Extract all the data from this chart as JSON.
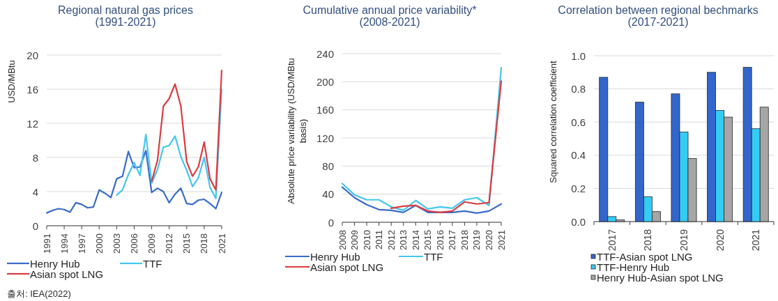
{
  "chart_data": [
    {
      "type": "line",
      "title": "Regional natural gas prices",
      "subtitle": "(1991-2021)",
      "ylabel": "USD/MBtu",
      "x": [
        1991,
        1992,
        1993,
        1994,
        1995,
        1996,
        1997,
        1998,
        1999,
        2000,
        2001,
        2002,
        2003,
        2004,
        2005,
        2006,
        2007,
        2008,
        2009,
        2010,
        2011,
        2012,
        2013,
        2014,
        2015,
        2016,
        2017,
        2018,
        2019,
        2020,
        2021
      ],
      "xlim": [
        1991,
        2021
      ],
      "xticks": [
        1991,
        1994,
        1997,
        2000,
        2003,
        2006,
        2009,
        2012,
        2015,
        2018,
        2021
      ],
      "ylim": [
        0,
        20
      ],
      "yticks": [
        0,
        4,
        8,
        12,
        16,
        20
      ],
      "grid": "y",
      "legend": "bottom",
      "series": [
        {
          "name": "Henry Hub",
          "color": "#3a6bc9",
          "values": [
            1.5,
            1.8,
            2.0,
            1.9,
            1.6,
            2.7,
            2.5,
            2.1,
            2.2,
            4.2,
            3.8,
            3.3,
            5.5,
            5.8,
            8.7,
            6.8,
            6.9,
            8.8,
            3.9,
            4.4,
            4.0,
            2.7,
            3.7,
            4.4,
            2.6,
            2.5,
            3.0,
            3.1,
            2.6,
            2.0,
            3.9
          ]
        },
        {
          "name": "TTF",
          "color": "#45c6ee",
          "values": [
            null,
            null,
            null,
            null,
            null,
            null,
            null,
            null,
            null,
            null,
            null,
            null,
            3.6,
            4.2,
            6.0,
            7.4,
            5.9,
            10.7,
            5.0,
            6.6,
            9.2,
            9.4,
            10.5,
            8.1,
            6.5,
            4.6,
            5.6,
            8.0,
            4.5,
            3.2,
            16.0
          ]
        },
        {
          "name": "Asian spot LNG",
          "color": "#dd3b3f",
          "values": [
            null,
            null,
            null,
            null,
            null,
            null,
            null,
            null,
            null,
            null,
            null,
            null,
            null,
            null,
            null,
            null,
            null,
            null,
            5.2,
            7.7,
            14.0,
            14.9,
            16.6,
            14.0,
            7.5,
            5.8,
            6.9,
            9.8,
            5.5,
            4.2,
            18.2
          ]
        }
      ],
      "annotations": [
        "출처: IEA(2022)"
      ]
    },
    {
      "type": "line",
      "title": "Cumulative annual price variability*",
      "subtitle": "(2008-2021)",
      "ylabel": "Absolute price variability (USD/MBtu basis)",
      "categories": [
        "2008",
        "2009",
        "2010",
        "2011",
        "2012",
        "2013",
        "2014",
        "2015",
        "2016",
        "2017",
        "2018",
        "2019",
        "2020",
        "2021"
      ],
      "ylim": [
        0,
        240
      ],
      "yticks": [
        0,
        40,
        80,
        120,
        160,
        200,
        240
      ],
      "grid": "y",
      "legend": "bottom",
      "series": [
        {
          "name": "Henry Hub",
          "color": "#3a6bc9",
          "values": [
            50,
            35,
            25,
            18,
            17,
            14,
            24,
            14,
            14,
            14,
            16,
            13,
            16,
            26
          ]
        },
        {
          "name": "TTF",
          "color": "#45c6ee",
          "values": [
            55,
            39,
            32,
            32,
            22,
            17,
            31,
            19,
            22,
            20,
            32,
            35,
            24,
            220
          ]
        },
        {
          "name": "Asian spot LNG",
          "color": "#dd3b3f",
          "values": [
            null,
            null,
            null,
            null,
            20,
            23,
            24,
            16,
            14,
            16,
            29,
            26,
            28,
            201
          ]
        }
      ]
    },
    {
      "type": "bar",
      "title": "Correlation between regional bechmarks",
      "subtitle": "(2017-2021)",
      "ylabel": "Squared correlation coefficient",
      "categories": [
        "2017",
        "2018",
        "2019",
        "2020",
        "2021"
      ],
      "ylim": [
        0,
        1
      ],
      "yticks": [
        {
          "value": 0,
          "label": "0.0"
        },
        0.2,
        0.4,
        0.6,
        0.8,
        {
          "value": 1,
          "label": "1.0"
        }
      ],
      "grid": "y",
      "legend": "bottom",
      "series": [
        {
          "name": "TTF-Asian spot LNG",
          "color": "#3366cc",
          "values": [
            0.87,
            0.72,
            0.77,
            0.9,
            0.93
          ]
        },
        {
          "name": "TTF-Henry Hub",
          "color": "#33ccf5",
          "values": [
            0.03,
            0.15,
            0.54,
            0.67,
            0.56
          ]
        },
        {
          "name": "Henry Hub-Asian spot LNG",
          "color": "#a6a6a6",
          "values": [
            0.01,
            0.06,
            0.38,
            0.63,
            0.69
          ]
        }
      ]
    }
  ]
}
